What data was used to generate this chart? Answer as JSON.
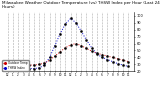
{
  "title": "Milwaukee Weather Outdoor Temperature (vs) THSW Index per Hour (Last 24 Hours)",
  "title_fontsize": 3.0,
  "background_color": "#ffffff",
  "grid_color": "#aaaaaa",
  "hours": [
    0,
    1,
    2,
    3,
    4,
    5,
    6,
    7,
    8,
    9,
    10,
    11,
    12,
    13,
    14,
    15,
    16,
    17,
    18,
    19,
    20,
    21,
    22,
    23
  ],
  "temp_values": [
    32,
    31,
    30,
    30,
    29,
    29,
    30,
    32,
    36,
    42,
    48,
    54,
    58,
    60,
    57,
    53,
    49,
    46,
    44,
    42,
    40,
    38,
    36,
    34
  ],
  "thsw_values": [
    27,
    26,
    25,
    25,
    24,
    24,
    25,
    29,
    40,
    57,
    74,
    88,
    96,
    90,
    78,
    65,
    54,
    45,
    40,
    37,
    34,
    31,
    29,
    27
  ],
  "temp_color": "#cc0000",
  "thsw_color": "#0000cc",
  "dot_color": "#000000",
  "ylim_min": 20,
  "ylim_max": 105,
  "yticks": [
    20,
    30,
    40,
    50,
    60,
    70,
    80,
    90,
    100
  ],
  "ytick_labels": [
    "20",
    "30",
    "40",
    "50",
    "60",
    "70",
    "80",
    "90",
    "100"
  ],
  "xtick_labels": [
    "12",
    "1",
    "2",
    "3",
    "4",
    "5",
    "6",
    "7",
    "8",
    "9",
    "10",
    "11",
    "12",
    "1",
    "2",
    "3",
    "4",
    "5",
    "6",
    "7",
    "8",
    "9",
    "10",
    "11"
  ],
  "legend_temp": "Outdoor Temp",
  "legend_thsw": "THSW Index",
  "marker_size": 1.5,
  "line_width": 0.7
}
